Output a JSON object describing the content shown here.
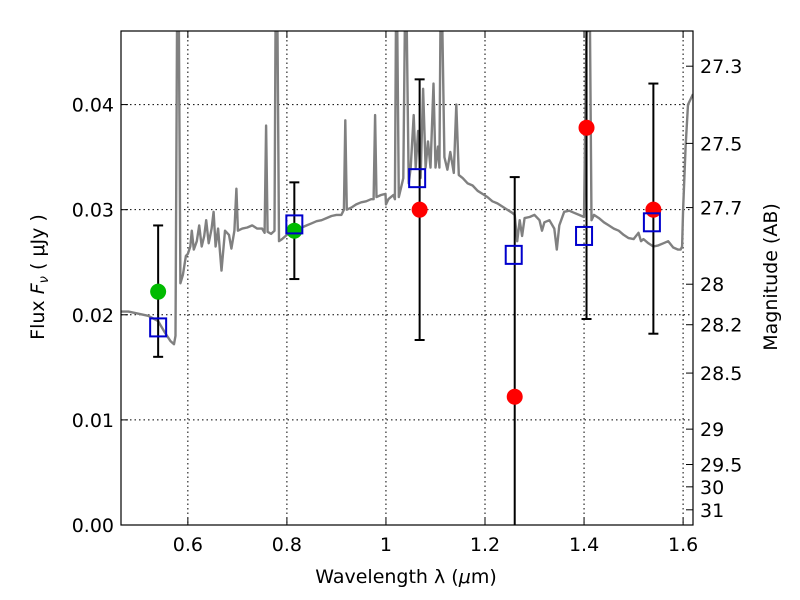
{
  "chart_data": {
    "type": "scatter",
    "xlabel_text": "Wavelength  λ (",
    "xlabel_mu": "μ",
    "xlabel_unit": "m)",
    "ylabel_text": "Flux  ",
    "ylabel_sym": "F",
    "ylabel_sub": "ν",
    "ylabel_mu": " ( μ",
    "ylabel_unit": "Jy )",
    "y2label": "Magnitude (AB)",
    "xlim": [
      0.465,
      1.62
    ],
    "ylim": [
      0.0,
      0.047
    ],
    "xticks": [
      {
        "v": 0.6,
        "label": "0.6"
      },
      {
        "v": 0.8,
        "label": "0.8"
      },
      {
        "v": 1.0,
        "label": "1"
      },
      {
        "v": 1.2,
        "label": "1.2"
      },
      {
        "v": 1.4,
        "label": "1.4"
      },
      {
        "v": 1.6,
        "label": "1.6"
      }
    ],
    "yticks": [
      {
        "v": 0.0,
        "label": "0.00"
      },
      {
        "v": 0.01,
        "label": "0.01"
      },
      {
        "v": 0.02,
        "label": "0.02"
      },
      {
        "v": 0.03,
        "label": "0.03"
      },
      {
        "v": 0.04,
        "label": "0.04"
      }
    ],
    "mag_ticks": [
      {
        "mag": 27.3,
        "label": "27.3"
      },
      {
        "mag": 27.5,
        "label": "27.5"
      },
      {
        "mag": 27.7,
        "label": "27.7"
      },
      {
        "mag": 28.0,
        "label": "28"
      },
      {
        "mag": 28.2,
        "label": "28.2"
      },
      {
        "mag": 28.5,
        "label": "28.5"
      },
      {
        "mag": 29.0,
        "label": "29"
      },
      {
        "mag": 29.5,
        "label": "29.5"
      },
      {
        "mag": 30.0,
        "label": "30"
      },
      {
        "mag": 31.0,
        "label": "31"
      }
    ],
    "colors": {
      "model": "#808080",
      "detection": "#00bb00",
      "upper_limit": "#ff0000",
      "model_band": "#0000cc",
      "errorbar": "#000000"
    },
    "green_points": [
      {
        "x": 0.54,
        "y": 0.0222
      },
      {
        "x": 0.815,
        "y": 0.028
      }
    ],
    "red_points": [
      {
        "x": 1.068,
        "y": 0.03
      },
      {
        "x": 1.26,
        "y": 0.0122
      },
      {
        "x": 1.405,
        "y": 0.0378
      },
      {
        "x": 1.54,
        "y": 0.03
      }
    ],
    "errorbars": [
      {
        "x": 0.54,
        "ylow": 0.016,
        "yhigh": 0.0285
      },
      {
        "x": 0.815,
        "ylow": 0.0234,
        "yhigh": 0.0326
      },
      {
        "x": 1.068,
        "ylow": 0.0176,
        "yhigh": 0.0424
      },
      {
        "x": 1.26,
        "ylow": 0.0,
        "yhigh": 0.0331
      },
      {
        "x": 1.405,
        "ylow": 0.0196,
        "yhigh": 0.047
      },
      {
        "x": 1.54,
        "ylow": 0.0182,
        "yhigh": 0.042
      }
    ],
    "model_bands": [
      {
        "x": 0.54,
        "y": 0.0188
      },
      {
        "x": 0.815,
        "y": 0.0286
      },
      {
        "x": 1.063,
        "y": 0.033
      },
      {
        "x": 1.258,
        "y": 0.0257
      },
      {
        "x": 1.4,
        "y": 0.0275
      },
      {
        "x": 1.537,
        "y": 0.0288
      }
    ],
    "model_spectrum": [
      [
        0.465,
        0.0203
      ],
      [
        0.48,
        0.0203
      ],
      [
        0.5,
        0.0201
      ],
      [
        0.52,
        0.0199
      ],
      [
        0.54,
        0.0194
      ],
      [
        0.555,
        0.0182
      ],
      [
        0.565,
        0.0175
      ],
      [
        0.572,
        0.0172
      ],
      [
        0.575,
        0.018
      ],
      [
        0.578,
        0.047
      ],
      [
        0.582,
        0.047
      ],
      [
        0.585,
        0.023
      ],
      [
        0.59,
        0.0238
      ],
      [
        0.596,
        0.0256
      ],
      [
        0.6,
        0.0258
      ],
      [
        0.605,
        0.0265
      ],
      [
        0.608,
        0.028
      ],
      [
        0.612,
        0.0262
      ],
      [
        0.618,
        0.027
      ],
      [
        0.623,
        0.0285
      ],
      [
        0.628,
        0.0265
      ],
      [
        0.633,
        0.0275
      ],
      [
        0.637,
        0.029
      ],
      [
        0.642,
        0.0268
      ],
      [
        0.648,
        0.0282
      ],
      [
        0.652,
        0.0298
      ],
      [
        0.656,
        0.0265
      ],
      [
        0.661,
        0.0282
      ],
      [
        0.668,
        0.0242
      ],
      [
        0.675,
        0.028
      ],
      [
        0.683,
        0.0276
      ],
      [
        0.688,
        0.0263
      ],
      [
        0.694,
        0.028
      ],
      [
        0.698,
        0.032
      ],
      [
        0.701,
        0.028
      ],
      [
        0.71,
        0.0282
      ],
      [
        0.72,
        0.0283
      ],
      [
        0.73,
        0.0285
      ],
      [
        0.74,
        0.0282
      ],
      [
        0.75,
        0.0282
      ],
      [
        0.755,
        0.0278
      ],
      [
        0.758,
        0.038
      ],
      [
        0.761,
        0.0279
      ],
      [
        0.768,
        0.0277
      ],
      [
        0.775,
        0.028
      ],
      [
        0.777,
        0.047
      ],
      [
        0.781,
        0.047
      ],
      [
        0.784,
        0.027
      ],
      [
        0.79,
        0.0272
      ],
      [
        0.8,
        0.0276
      ],
      [
        0.81,
        0.028
      ],
      [
        0.82,
        0.0282
      ],
      [
        0.83,
        0.0283
      ],
      [
        0.84,
        0.0285
      ],
      [
        0.85,
        0.0287
      ],
      [
        0.86,
        0.0289
      ],
      [
        0.87,
        0.029
      ],
      [
        0.88,
        0.0292
      ],
      [
        0.89,
        0.0294
      ],
      [
        0.9,
        0.0295
      ],
      [
        0.91,
        0.0295
      ],
      [
        0.915,
        0.03
      ],
      [
        0.918,
        0.0385
      ],
      [
        0.921,
        0.03
      ],
      [
        0.93,
        0.0302
      ],
      [
        0.94,
        0.0305
      ],
      [
        0.95,
        0.0307
      ],
      [
        0.96,
        0.0308
      ],
      [
        0.97,
        0.031
      ],
      [
        0.975,
        0.031
      ],
      [
        0.978,
        0.039
      ],
      [
        0.981,
        0.0312
      ],
      [
        0.99,
        0.0314
      ],
      [
        0.999,
        0.0315
      ],
      [
        1.0,
        0.0305
      ],
      [
        1.005,
        0.031
      ],
      [
        1.01,
        0.0312
      ],
      [
        1.015,
        0.0314
      ],
      [
        1.018,
        0.031
      ],
      [
        1.02,
        0.047
      ],
      [
        1.023,
        0.047
      ],
      [
        1.026,
        0.0312
      ],
      [
        1.03,
        0.032
      ],
      [
        1.035,
        0.033
      ],
      [
        1.038,
        0.047
      ],
      [
        1.042,
        0.047
      ],
      [
        1.046,
        0.0325
      ],
      [
        1.05,
        0.034
      ],
      [
        1.056,
        0.039
      ],
      [
        1.06,
        0.034
      ],
      [
        1.065,
        0.0375
      ],
      [
        1.07,
        0.033
      ],
      [
        1.075,
        0.0415
      ],
      [
        1.08,
        0.034
      ],
      [
        1.085,
        0.0365
      ],
      [
        1.09,
        0.034
      ],
      [
        1.096,
        0.042
      ],
      [
        1.1,
        0.034
      ],
      [
        1.105,
        0.036
      ],
      [
        1.108,
        0.034
      ],
      [
        1.11,
        0.047
      ],
      [
        1.114,
        0.047
      ],
      [
        1.118,
        0.035
      ],
      [
        1.124,
        0.0338
      ],
      [
        1.13,
        0.0355
      ],
      [
        1.137,
        0.0335
      ],
      [
        1.142,
        0.04
      ],
      [
        1.147,
        0.0333
      ],
      [
        1.155,
        0.033
      ],
      [
        1.165,
        0.0325
      ],
      [
        1.175,
        0.0323
      ],
      [
        1.185,
        0.0318
      ],
      [
        1.195,
        0.0315
      ],
      [
        1.205,
        0.0312
      ],
      [
        1.215,
        0.0308
      ],
      [
        1.225,
        0.0306
      ],
      [
        1.235,
        0.0303
      ],
      [
        1.245,
        0.03
      ],
      [
        1.255,
        0.0297
      ],
      [
        1.26,
        0.0295
      ],
      [
        1.265,
        0.027
      ],
      [
        1.27,
        0.029
      ],
      [
        1.275,
        0.0275
      ],
      [
        1.28,
        0.0292
      ],
      [
        1.29,
        0.0293
      ],
      [
        1.3,
        0.0295
      ],
      [
        1.31,
        0.029
      ],
      [
        1.315,
        0.028
      ],
      [
        1.32,
        0.0288
      ],
      [
        1.33,
        0.029
      ],
      [
        1.34,
        0.0282
      ],
      [
        1.345,
        0.0262
      ],
      [
        1.35,
        0.0285
      ],
      [
        1.36,
        0.0298
      ],
      [
        1.37,
        0.0299
      ],
      [
        1.38,
        0.0297
      ],
      [
        1.39,
        0.0295
      ],
      [
        1.4,
        0.0293
      ],
      [
        1.405,
        0.047
      ],
      [
        1.408,
        0.047
      ],
      [
        1.412,
        0.047
      ],
      [
        1.415,
        0.029
      ],
      [
        1.42,
        0.0295
      ],
      [
        1.43,
        0.0292
      ],
      [
        1.44,
        0.0288
      ],
      [
        1.45,
        0.0285
      ],
      [
        1.46,
        0.0282
      ],
      [
        1.47,
        0.028
      ],
      [
        1.48,
        0.0276
      ],
      [
        1.49,
        0.0273
      ],
      [
        1.5,
        0.0272
      ],
      [
        1.51,
        0.0278
      ],
      [
        1.515,
        0.027
      ],
      [
        1.52,
        0.0272
      ],
      [
        1.53,
        0.0268
      ],
      [
        1.54,
        0.0265
      ],
      [
        1.55,
        0.0266
      ],
      [
        1.56,
        0.0268
      ],
      [
        1.57,
        0.027
      ],
      [
        1.58,
        0.0264
      ],
      [
        1.59,
        0.0262
      ],
      [
        1.595,
        0.0262
      ],
      [
        1.598,
        0.0265
      ],
      [
        1.6,
        0.03
      ],
      [
        1.605,
        0.036
      ],
      [
        1.61,
        0.04
      ],
      [
        1.62,
        0.041
      ]
    ]
  }
}
